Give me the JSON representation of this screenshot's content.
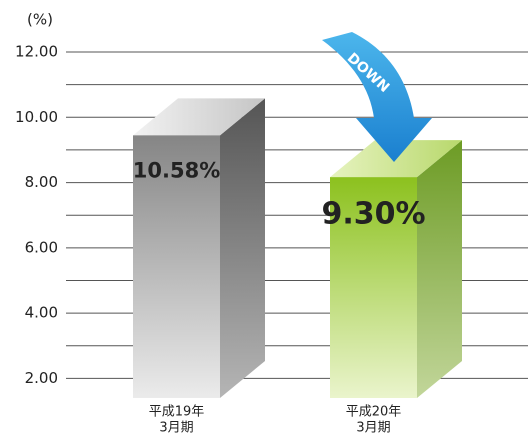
{
  "chart_data": {
    "type": "bar3d",
    "y_unit": "(%)",
    "categories": [
      [
        "平成19年",
        "3月期"
      ],
      [
        "平成20年",
        "3月期"
      ]
    ],
    "values": [
      10.58,
      9.3
    ],
    "value_labels": [
      "10.58%",
      "9.30%"
    ],
    "colors": [
      "#9a9a9a",
      "#a6cf3a"
    ],
    "ylim": [
      1.4,
      12
    ],
    "yticks": [
      {
        "value": 2,
        "label": "2.00"
      },
      {
        "value": 4,
        "label": "4.00"
      },
      {
        "value": 6,
        "label": "6.00"
      },
      {
        "value": 8,
        "label": "8.00"
      },
      {
        "value": 10,
        "label": "10.00"
      },
      {
        "value": 12,
        "label": "12.00"
      }
    ],
    "minor_yticks": [
      3,
      5,
      7,
      9,
      11
    ],
    "grid": true,
    "annotation": "DOWN"
  }
}
